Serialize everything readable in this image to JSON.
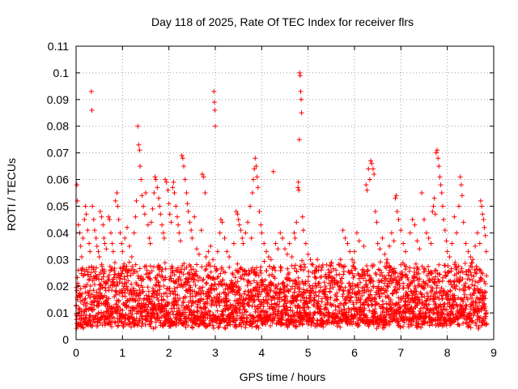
{
  "chart_data": {
    "type": "scatter",
    "title": "Day 118 of 2025, Rate Of TEC Index for receiver flrs",
    "xlabel": "GPS time / hours",
    "ylabel": "ROTI / TECUs",
    "xlim": [
      0,
      9
    ],
    "ylim": [
      0,
      0.11
    ],
    "x_ticks": [
      "0",
      "1",
      "2",
      "3",
      "4",
      "5",
      "6",
      "7",
      "8",
      "9"
    ],
    "y_ticks": [
      "0",
      "0.01",
      "0.02",
      "0.03",
      "0.04",
      "0.05",
      "0.06",
      "0.07",
      "0.08",
      "0.09",
      "0.1",
      "0.11"
    ],
    "grid": true,
    "marker": "+",
    "series_color": "#ff0000",
    "background_band": {
      "description": "dense scatter of ROTI values roughly every ~0.01 h",
      "x_start": 0.0,
      "x_end": 8.85,
      "typical_low": 0.006,
      "typical_high": 0.028
    },
    "series": [
      {
        "name": "ROTI",
        "points": [
          [
            0.02,
            0.058
          ],
          [
            0.03,
            0.052
          ],
          [
            0.05,
            0.043
          ],
          [
            0.08,
            0.04
          ],
          [
            0.1,
            0.035
          ],
          [
            0.12,
            0.031
          ],
          [
            0.15,
            0.038
          ],
          [
            0.18,
            0.045
          ],
          [
            0.2,
            0.05
          ],
          [
            0.22,
            0.047
          ],
          [
            0.25,
            0.041
          ],
          [
            0.28,
            0.036
          ],
          [
            0.3,
            0.033
          ],
          [
            0.33,
            0.093
          ],
          [
            0.34,
            0.086
          ],
          [
            0.35,
            0.05
          ],
          [
            0.38,
            0.045
          ],
          [
            0.4,
            0.041
          ],
          [
            0.43,
            0.038
          ],
          [
            0.45,
            0.035
          ],
          [
            0.48,
            0.033
          ],
          [
            0.5,
            0.031
          ],
          [
            0.52,
            0.048
          ],
          [
            0.55,
            0.046
          ],
          [
            0.58,
            0.043
          ],
          [
            0.6,
            0.038
          ],
          [
            0.62,
            0.036
          ],
          [
            0.65,
            0.034
          ],
          [
            0.7,
            0.046
          ],
          [
            0.72,
            0.045
          ],
          [
            0.75,
            0.04
          ],
          [
            0.78,
            0.036
          ],
          [
            0.8,
            0.033
          ],
          [
            0.85,
            0.052
          ],
          [
            0.88,
            0.055
          ],
          [
            0.9,
            0.05
          ],
          [
            0.92,
            0.045
          ],
          [
            0.95,
            0.04
          ],
          [
            0.98,
            0.036
          ],
          [
            1.0,
            0.033
          ],
          [
            1.05,
            0.038
          ],
          [
            1.1,
            0.042
          ],
          [
            1.15,
            0.035
          ],
          [
            1.2,
            0.031
          ],
          [
            1.25,
            0.04
          ],
          [
            1.28,
            0.046
          ],
          [
            1.3,
            0.052
          ],
          [
            1.33,
            0.08
          ],
          [
            1.35,
            0.073
          ],
          [
            1.37,
            0.071
          ],
          [
            1.38,
            0.065
          ],
          [
            1.4,
            0.06
          ],
          [
            1.42,
            0.054
          ],
          [
            1.45,
            0.05
          ],
          [
            1.48,
            0.047
          ],
          [
            1.5,
            0.055
          ],
          [
            1.55,
            0.043
          ],
          [
            1.58,
            0.038
          ],
          [
            1.6,
            0.036
          ],
          [
            1.62,
            0.044
          ],
          [
            1.65,
            0.049
          ],
          [
            1.68,
            0.055
          ],
          [
            1.7,
            0.061
          ],
          [
            1.72,
            0.06
          ],
          [
            1.75,
            0.057
          ],
          [
            1.78,
            0.053
          ],
          [
            1.8,
            0.05
          ],
          [
            1.82,
            0.047
          ],
          [
            1.85,
            0.043
          ],
          [
            1.88,
            0.04
          ],
          [
            1.9,
            0.038
          ],
          [
            1.92,
            0.06
          ],
          [
            1.95,
            0.059
          ],
          [
            1.98,
            0.056
          ],
          [
            2.0,
            0.051
          ],
          [
            2.02,
            0.047
          ],
          [
            2.05,
            0.044
          ],
          [
            2.08,
            0.057
          ],
          [
            2.1,
            0.059
          ],
          [
            2.12,
            0.055
          ],
          [
            2.15,
            0.05
          ],
          [
            2.18,
            0.046
          ],
          [
            2.2,
            0.043
          ],
          [
            2.22,
            0.04
          ],
          [
            2.25,
            0.037
          ],
          [
            2.28,
            0.069
          ],
          [
            2.3,
            0.068
          ],
          [
            2.32,
            0.065
          ],
          [
            2.35,
            0.06
          ],
          [
            2.38,
            0.055
          ],
          [
            2.4,
            0.051
          ],
          [
            2.42,
            0.048
          ],
          [
            2.45,
            0.044
          ],
          [
            2.48,
            0.041
          ],
          [
            2.5,
            0.038
          ],
          [
            2.55,
            0.046
          ],
          [
            2.6,
            0.034
          ],
          [
            2.65,
            0.032
          ],
          [
            2.7,
            0.041
          ],
          [
            2.72,
            0.062
          ],
          [
            2.75,
            0.061
          ],
          [
            2.78,
            0.055
          ],
          [
            2.8,
            0.031
          ],
          [
            2.85,
            0.033
          ],
          [
            2.9,
            0.035
          ],
          [
            2.95,
            0.03
          ],
          [
            2.97,
            0.093
          ],
          [
            2.98,
            0.089
          ],
          [
            2.99,
            0.086
          ],
          [
            3.0,
            0.08
          ],
          [
            3.05,
            0.033
          ],
          [
            3.1,
            0.04
          ],
          [
            3.12,
            0.045
          ],
          [
            3.15,
            0.044
          ],
          [
            3.2,
            0.038
          ],
          [
            3.25,
            0.033
          ],
          [
            3.3,
            0.031
          ],
          [
            3.4,
            0.036
          ],
          [
            3.45,
            0.048
          ],
          [
            3.48,
            0.047
          ],
          [
            3.5,
            0.045
          ],
          [
            3.52,
            0.043
          ],
          [
            3.55,
            0.041
          ],
          [
            3.58,
            0.038
          ],
          [
            3.6,
            0.036
          ],
          [
            3.65,
            0.04
          ],
          [
            3.7,
            0.044
          ],
          [
            3.75,
            0.05
          ],
          [
            3.78,
            0.038
          ],
          [
            3.8,
            0.055
          ],
          [
            3.82,
            0.06
          ],
          [
            3.84,
            0.064
          ],
          [
            3.86,
            0.068
          ],
          [
            3.88,
            0.065
          ],
          [
            3.9,
            0.061
          ],
          [
            3.92,
            0.057
          ],
          [
            3.95,
            0.048
          ],
          [
            3.98,
            0.043
          ],
          [
            4.0,
            0.04
          ],
          [
            4.05,
            0.036
          ],
          [
            4.1,
            0.033
          ],
          [
            4.15,
            0.031
          ],
          [
            4.2,
            0.03
          ],
          [
            4.25,
            0.063
          ],
          [
            4.3,
            0.036
          ],
          [
            4.35,
            0.034
          ],
          [
            4.4,
            0.04
          ],
          [
            4.45,
            0.038
          ],
          [
            4.5,
            0.034
          ],
          [
            4.55,
            0.032
          ],
          [
            4.6,
            0.036
          ],
          [
            4.65,
            0.031
          ],
          [
            4.7,
            0.04
          ],
          [
            4.72,
            0.038
          ],
          [
            4.75,
            0.044
          ],
          [
            4.78,
            0.057
          ],
          [
            4.79,
            0.059
          ],
          [
            4.8,
            0.056
          ],
          [
            4.81,
            0.075
          ],
          [
            4.82,
            0.1
          ],
          [
            4.83,
            0.099
          ],
          [
            4.84,
            0.093
          ],
          [
            4.85,
            0.09
          ],
          [
            4.86,
            0.085
          ],
          [
            4.88,
            0.046
          ],
          [
            4.9,
            0.041
          ],
          [
            4.95,
            0.036
          ],
          [
            5.0,
            0.032
          ],
          [
            5.05,
            0.03
          ],
          [
            5.1,
            0.028
          ],
          [
            5.2,
            0.03
          ],
          [
            5.3,
            0.027
          ],
          [
            5.4,
            0.028
          ],
          [
            5.5,
            0.029
          ],
          [
            5.6,
            0.026
          ],
          [
            5.7,
            0.03
          ],
          [
            5.75,
            0.041
          ],
          [
            5.8,
            0.038
          ],
          [
            5.85,
            0.036
          ],
          [
            5.9,
            0.033
          ],
          [
            5.95,
            0.03
          ],
          [
            6.0,
            0.033
          ],
          [
            6.05,
            0.04
          ],
          [
            6.1,
            0.037
          ],
          [
            6.2,
            0.035
          ],
          [
            6.25,
            0.058
          ],
          [
            6.27,
            0.056
          ],
          [
            6.3,
            0.064
          ],
          [
            6.33,
            0.06
          ],
          [
            6.35,
            0.067
          ],
          [
            6.37,
            0.066
          ],
          [
            6.4,
            0.064
          ],
          [
            6.42,
            0.062
          ],
          [
            6.45,
            0.048
          ],
          [
            6.48,
            0.044
          ],
          [
            6.5,
            0.036
          ],
          [
            6.55,
            0.034
          ],
          [
            6.6,
            0.038
          ],
          [
            6.65,
            0.032
          ],
          [
            6.7,
            0.03
          ],
          [
            6.75,
            0.035
          ],
          [
            6.8,
            0.04
          ],
          [
            6.85,
            0.037
          ],
          [
            6.88,
            0.053
          ],
          [
            6.9,
            0.054
          ],
          [
            6.92,
            0.048
          ],
          [
            6.95,
            0.045
          ],
          [
            7.0,
            0.041
          ],
          [
            7.05,
            0.036
          ],
          [
            7.1,
            0.033
          ],
          [
            7.2,
            0.04
          ],
          [
            7.25,
            0.045
          ],
          [
            7.3,
            0.043
          ],
          [
            7.35,
            0.037
          ],
          [
            7.4,
            0.034
          ],
          [
            7.45,
            0.055
          ],
          [
            7.5,
            0.045
          ],
          [
            7.55,
            0.04
          ],
          [
            7.6,
            0.038
          ],
          [
            7.65,
            0.036
          ],
          [
            7.68,
            0.048
          ],
          [
            7.7,
            0.05
          ],
          [
            7.72,
            0.053
          ],
          [
            7.74,
            0.047
          ],
          [
            7.76,
            0.07
          ],
          [
            7.78,
            0.071
          ],
          [
            7.8,
            0.068
          ],
          [
            7.82,
            0.065
          ],
          [
            7.84,
            0.061
          ],
          [
            7.86,
            0.058
          ],
          [
            7.88,
            0.055
          ],
          [
            7.9,
            0.05
          ],
          [
            7.92,
            0.045
          ],
          [
            7.95,
            0.041
          ],
          [
            7.98,
            0.037
          ],
          [
            8.0,
            0.033
          ],
          [
            8.05,
            0.031
          ],
          [
            8.1,
            0.036
          ],
          [
            8.15,
            0.046
          ],
          [
            8.2,
            0.04
          ],
          [
            8.25,
            0.05
          ],
          [
            8.28,
            0.061
          ],
          [
            8.3,
            0.058
          ],
          [
            8.32,
            0.054
          ],
          [
            8.35,
            0.044
          ],
          [
            8.4,
            0.036
          ],
          [
            8.45,
            0.033
          ],
          [
            8.5,
            0.031
          ],
          [
            8.55,
            0.03
          ],
          [
            8.6,
            0.035
          ],
          [
            8.65,
            0.04
          ],
          [
            8.7,
            0.036
          ],
          [
            8.72,
            0.052
          ],
          [
            8.74,
            0.05
          ],
          [
            8.76,
            0.047
          ],
          [
            8.78,
            0.045
          ],
          [
            8.8,
            0.042
          ],
          [
            8.82,
            0.039
          ],
          [
            8.84,
            0.033
          ]
        ]
      }
    ]
  }
}
